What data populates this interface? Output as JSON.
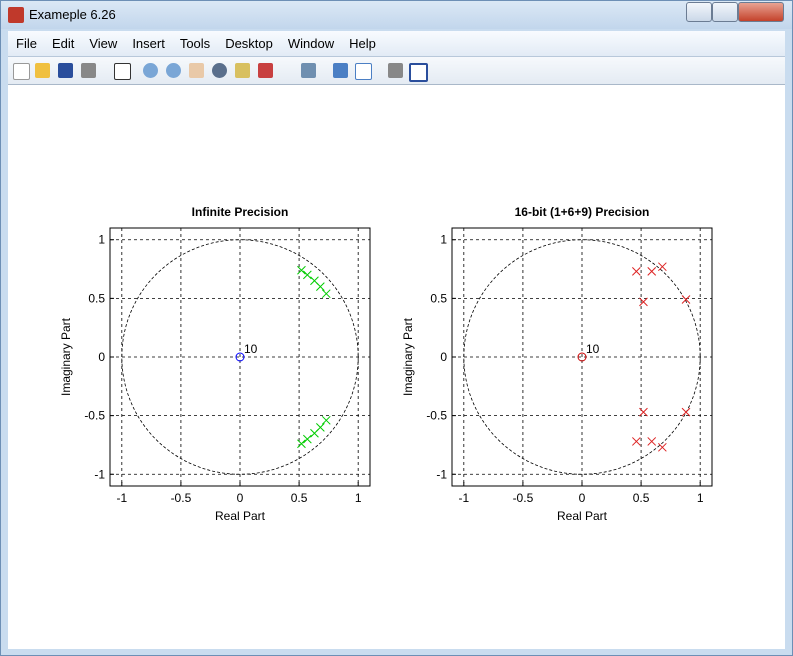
{
  "window": {
    "title": "Exameple 6.26",
    "menu": [
      "File",
      "Edit",
      "View",
      "Insert",
      "Tools",
      "Desktop",
      "Window",
      "Help"
    ]
  },
  "chart_data": [
    {
      "type": "scatter",
      "title": "Infinite Precision",
      "x_label": "Real Part",
      "y_label": "Imaginary Part",
      "xlim": [
        -1.1,
        1.1
      ],
      "ylim": [
        -1.1,
        1.1
      ],
      "xticks": [
        -1,
        -0.5,
        0,
        0.5,
        1
      ],
      "yticks": [
        -1,
        -0.5,
        0,
        0.5,
        1
      ],
      "grid": true,
      "series": [
        {
          "marker": "o",
          "color": "#0000ff",
          "x": [
            0
          ],
          "y": [
            0
          ],
          "multiplicity": [
            10
          ]
        },
        {
          "marker": "x",
          "color": "#00cc00",
          "x": [
            0.52,
            0.57,
            0.63,
            0.68,
            0.73,
            0.52,
            0.57,
            0.63,
            0.68,
            0.73
          ],
          "y": [
            0.74,
            0.7,
            0.65,
            0.6,
            0.54,
            -0.74,
            -0.7,
            -0.65,
            -0.6,
            -0.54
          ]
        }
      ]
    },
    {
      "type": "scatter",
      "title": "16-bit (1+6+9) Precision",
      "x_label": "Real Part",
      "y_label": "Imaginary Part",
      "xlim": [
        -1.1,
        1.1
      ],
      "ylim": [
        -1.1,
        1.1
      ],
      "xticks": [
        -1,
        -0.5,
        0,
        0.5,
        1
      ],
      "yticks": [
        -1,
        -0.5,
        0,
        0.5,
        1
      ],
      "grid": true,
      "series": [
        {
          "marker": "o",
          "color": "#cc0000",
          "x": [
            0
          ],
          "y": [
            0
          ],
          "multiplicity": [
            10
          ]
        },
        {
          "marker": "x",
          "color": "#dd2222",
          "x": [
            0.46,
            0.59,
            0.68,
            0.52,
            0.88,
            0.46,
            0.59,
            0.68,
            0.52,
            0.88
          ],
          "y": [
            0.73,
            0.73,
            0.77,
            0.47,
            0.49,
            -0.72,
            -0.72,
            -0.77,
            -0.47,
            -0.47
          ]
        }
      ]
    }
  ]
}
